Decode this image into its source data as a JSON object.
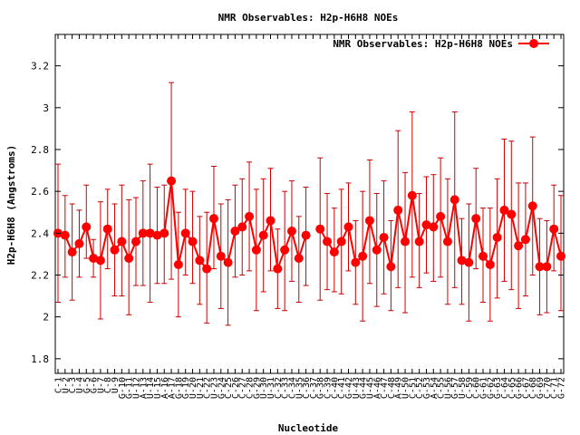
{
  "chart_data": {
    "type": "line",
    "title": "NMR Observables: H2p-H6H8 NOEs",
    "xlabel": "Nucleotide",
    "ylabel": "H2p-H6H8 (Angstroms)",
    "ylim": [
      1.73,
      3.35
    ],
    "yticks": [
      "1.8",
      "2",
      "2.2",
      "2.4",
      "2.6",
      "2.8",
      "3",
      "3.2"
    ],
    "ytick_values": [
      1.8,
      2.0,
      2.2,
      2.4,
      2.6,
      2.8,
      3.0,
      3.2
    ],
    "grid": false,
    "legend_position": "top-right",
    "colors": {
      "series": "#ff0000",
      "error": "#cc0000",
      "axis": "#000000"
    },
    "categories": [
      "C-1",
      "U-2",
      "C-3",
      "U-4",
      "G-5",
      "G-6",
      "U-7",
      "C-8",
      "U-9",
      "G-10",
      "G-11",
      "U-12",
      "A-13",
      "U-14",
      "U-15",
      "A-16",
      "A-17",
      "G-18",
      "G-19",
      "U-20",
      "U-21",
      "C-22",
      "U-23",
      "G-24",
      "C-25",
      "C-26",
      "C-27",
      "C-28",
      "G-29",
      "U-30",
      "U-31",
      "C-32",
      "C-33",
      "C-34",
      "U-35",
      "C-36",
      "C-37",
      "G-38",
      "C-39",
      "C-40",
      "C-41",
      "G-42",
      "U-43",
      "G-44",
      "U-45",
      "A-46",
      "C-47",
      "C-48",
      "A-49",
      "U-50",
      "C-51",
      "C-52",
      "G-53",
      "A-54",
      "C-55",
      "U-56",
      "G-57",
      "U-58",
      "C-59",
      "C-60",
      "G-61",
      "G-62",
      "G-63",
      "C-64",
      "C-65",
      "G-66",
      "C-67",
      "C-68",
      "G-69",
      "C-70",
      "C-71",
      "G-72"
    ],
    "series": [
      {
        "name": "NMR Observables: H2p-H6H8 NOEs",
        "values": [
          2.4,
          2.39,
          2.31,
          2.35,
          2.43,
          2.28,
          2.27,
          2.42,
          2.32,
          2.36,
          2.28,
          2.36,
          2.4,
          2.4,
          2.39,
          2.4,
          2.65,
          2.25,
          2.4,
          2.36,
          2.27,
          2.23,
          2.47,
          2.29,
          2.26,
          2.41,
          2.43,
          2.48,
          2.32,
          2.39,
          2.46,
          2.23,
          2.32,
          2.41,
          2.28,
          2.39,
          null,
          2.42,
          2.36,
          2.31,
          2.36,
          2.43,
          2.26,
          2.29,
          2.46,
          2.32,
          2.38,
          2.24,
          2.51,
          2.36,
          2.58,
          2.36,
          2.44,
          2.43,
          2.48,
          2.36,
          2.56,
          2.27,
          2.26,
          2.47,
          2.29,
          2.25,
          2.38,
          2.51,
          2.49,
          2.34,
          2.37,
          2.53,
          2.24,
          2.24,
          2.42,
          2.29
        ],
        "err_low": [
          2.07,
          2.19,
          2.08,
          2.19,
          2.28,
          2.19,
          1.99,
          2.23,
          2.1,
          2.1,
          2.01,
          2.15,
          2.15,
          2.07,
          2.16,
          2.16,
          2.18,
          2.0,
          2.2,
          2.16,
          2.06,
          1.97,
          2.23,
          2.04,
          1.96,
          2.19,
          2.2,
          2.22,
          2.03,
          2.12,
          2.22,
          2.04,
          2.03,
          2.17,
          2.07,
          2.15,
          null,
          2.08,
          2.13,
          2.12,
          2.11,
          2.22,
          2.06,
          1.98,
          2.16,
          2.05,
          2.11,
          2.03,
          2.14,
          2.02,
          2.19,
          2.14,
          2.21,
          2.17,
          2.19,
          2.06,
          2.14,
          2.06,
          1.98,
          2.23,
          2.07,
          1.98,
          2.09,
          2.17,
          2.13,
          2.04,
          2.1,
          2.2,
          2.01,
          2.02,
          2.22,
          2.03
        ],
        "err_high": [
          2.73,
          2.58,
          2.54,
          2.51,
          2.63,
          2.37,
          2.55,
          2.61,
          2.54,
          2.63,
          2.56,
          2.57,
          2.65,
          2.73,
          2.62,
          2.63,
          3.12,
          2.5,
          2.61,
          2.6,
          2.48,
          2.5,
          2.72,
          2.54,
          2.56,
          2.63,
          2.66,
          2.74,
          2.61,
          2.66,
          2.71,
          2.42,
          2.6,
          2.65,
          2.48,
          2.62,
          null,
          2.76,
          2.59,
          2.52,
          2.61,
          2.64,
          2.46,
          2.6,
          2.75,
          2.59,
          2.65,
          2.46,
          2.89,
          2.69,
          2.98,
          2.59,
          2.67,
          2.68,
          2.76,
          2.66,
          2.98,
          2.47,
          2.54,
          2.71,
          2.52,
          2.52,
          2.66,
          2.85,
          2.84,
          2.64,
          2.64,
          2.86,
          2.47,
          2.46,
          2.63,
          2.58
        ]
      }
    ]
  }
}
